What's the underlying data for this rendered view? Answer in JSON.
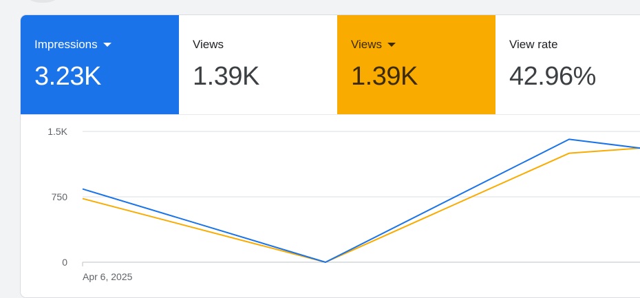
{
  "metrics": [
    {
      "label": "Impressions",
      "value": "3.23K",
      "dropdown": true,
      "color": "#1a73e8"
    },
    {
      "label": "Views",
      "value": "1.39K",
      "dropdown": false,
      "color": ""
    },
    {
      "label": "Views",
      "value": "1.39K",
      "dropdown": true,
      "color": "#f9ab00"
    },
    {
      "label": "View rate",
      "value": "42.96%",
      "dropdown": false,
      "color": ""
    }
  ],
  "chart_data": {
    "type": "line",
    "x": [
      "Apr 6, 2025",
      "",
      "",
      ""
    ],
    "x_tick_labels": [
      "Apr 6, 2025"
    ],
    "y_tick_labels": [
      "1.5K",
      "750",
      "0"
    ],
    "y_ticks": [
      1500,
      750,
      0
    ],
    "ylim": [
      0,
      1500
    ],
    "grid": true,
    "series": [
      {
        "color": "#1a73e8",
        "values": [
          840,
          0,
          1410,
          1290
        ]
      },
      {
        "color": "#f9ab00",
        "values": [
          730,
          0,
          1250,
          1320
        ]
      }
    ]
  }
}
